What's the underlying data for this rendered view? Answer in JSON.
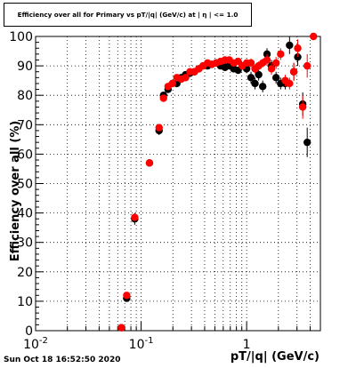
{
  "chart_data": {
    "type": "scatter",
    "title": "Efficiency over all for Primary vs pT/|q| (GeV/c) at | η | <= 1.0",
    "xlabel": "pT/|q| (GeV/c)",
    "ylabel": "Efficiency over all (%)",
    "xscale": "log",
    "xlim": [
      0.01,
      5.0
    ],
    "ylim": [
      0,
      100
    ],
    "x_ticks": [
      {
        "value": 0.01,
        "base": "10",
        "exp": "-2"
      },
      {
        "value": 0.1,
        "base": "10",
        "exp": "-1"
      },
      {
        "value": 1,
        "base": "1",
        "exp": ""
      }
    ],
    "y_ticks": [
      "0",
      "10",
      "20",
      "30",
      "40",
      "50",
      "60",
      "70",
      "80",
      "90",
      "100"
    ],
    "grid": true,
    "series": [
      {
        "color": "#000000",
        "points": [
          [
            0.065,
            1
          ],
          [
            0.073,
            11
          ],
          [
            0.087,
            38
          ],
          [
            0.12,
            57
          ],
          [
            0.148,
            68
          ],
          [
            0.163,
            80
          ],
          [
            0.18,
            82
          ],
          [
            0.198,
            84
          ],
          [
            0.218,
            84
          ],
          [
            0.24,
            86
          ],
          [
            0.264,
            87
          ],
          [
            0.29,
            87.5
          ],
          [
            0.32,
            88
          ],
          [
            0.352,
            89
          ],
          [
            0.387,
            90
          ],
          [
            0.426,
            90
          ],
          [
            0.468,
            90.5
          ],
          [
            0.515,
            91
          ],
          [
            0.566,
            90
          ],
          [
            0.623,
            89.5
          ],
          [
            0.685,
            90
          ],
          [
            0.754,
            89
          ],
          [
            0.83,
            88.5
          ],
          [
            0.91,
            90
          ],
          [
            1.0,
            89
          ],
          [
            1.1,
            86
          ],
          [
            1.2,
            84
          ],
          [
            1.3,
            87
          ],
          [
            1.42,
            83
          ],
          [
            1.56,
            94
          ],
          [
            1.72,
            90
          ],
          [
            1.9,
            86
          ],
          [
            2.1,
            84
          ],
          [
            2.32,
            84
          ],
          [
            2.55,
            97
          ],
          [
            2.8,
            88
          ],
          [
            3.05,
            93
          ],
          [
            3.4,
            77
          ],
          [
            3.75,
            64
          ]
        ],
        "yerr": [
          0.5,
          1,
          2,
          1,
          1.5,
          1,
          1,
          1,
          1,
          1,
          1,
          1,
          1,
          1,
          1,
          1,
          1,
          1,
          1,
          1,
          1,
          1,
          1,
          1,
          1.5,
          2,
          2,
          2,
          2,
          2,
          2,
          2,
          2,
          2,
          3,
          3,
          3,
          4,
          5
        ]
      },
      {
        "color": "#ff0000",
        "points": [
          [
            0.065,
            1
          ],
          [
            0.073,
            12
          ],
          [
            0.087,
            38.5
          ],
          [
            0.12,
            57
          ],
          [
            0.148,
            69
          ],
          [
            0.163,
            79
          ],
          [
            0.18,
            83
          ],
          [
            0.198,
            84
          ],
          [
            0.218,
            86
          ],
          [
            0.24,
            85.5
          ],
          [
            0.264,
            86
          ],
          [
            0.29,
            88
          ],
          [
            0.32,
            88
          ],
          [
            0.352,
            89
          ],
          [
            0.387,
            90
          ],
          [
            0.426,
            91
          ],
          [
            0.468,
            90.5
          ],
          [
            0.515,
            91
          ],
          [
            0.566,
            91.5
          ],
          [
            0.623,
            92
          ],
          [
            0.685,
            92
          ],
          [
            0.754,
            91
          ],
          [
            0.83,
            91.5
          ],
          [
            0.91,
            90
          ],
          [
            1.0,
            91
          ],
          [
            1.1,
            91
          ],
          [
            1.2,
            89
          ],
          [
            1.3,
            90
          ],
          [
            1.42,
            91
          ],
          [
            1.56,
            92
          ],
          [
            1.72,
            89
          ],
          [
            1.9,
            91
          ],
          [
            2.1,
            94
          ],
          [
            2.32,
            85
          ],
          [
            2.55,
            84
          ],
          [
            2.8,
            88
          ],
          [
            3.05,
            96
          ],
          [
            3.4,
            76
          ],
          [
            3.75,
            90
          ],
          [
            4.3,
            100
          ]
        ],
        "yerr": [
          0.5,
          1,
          1,
          1,
          1,
          1,
          1,
          1,
          1,
          1,
          1,
          1,
          1,
          1,
          1,
          1,
          1,
          1,
          1,
          1,
          1,
          1,
          1,
          1,
          1,
          1.5,
          1.5,
          1.5,
          1.5,
          2,
          2,
          2,
          2,
          2,
          2,
          3,
          3,
          4,
          4,
          1
        ]
      }
    ]
  },
  "footer": "Sun Oct 18 16:52:50 2020"
}
